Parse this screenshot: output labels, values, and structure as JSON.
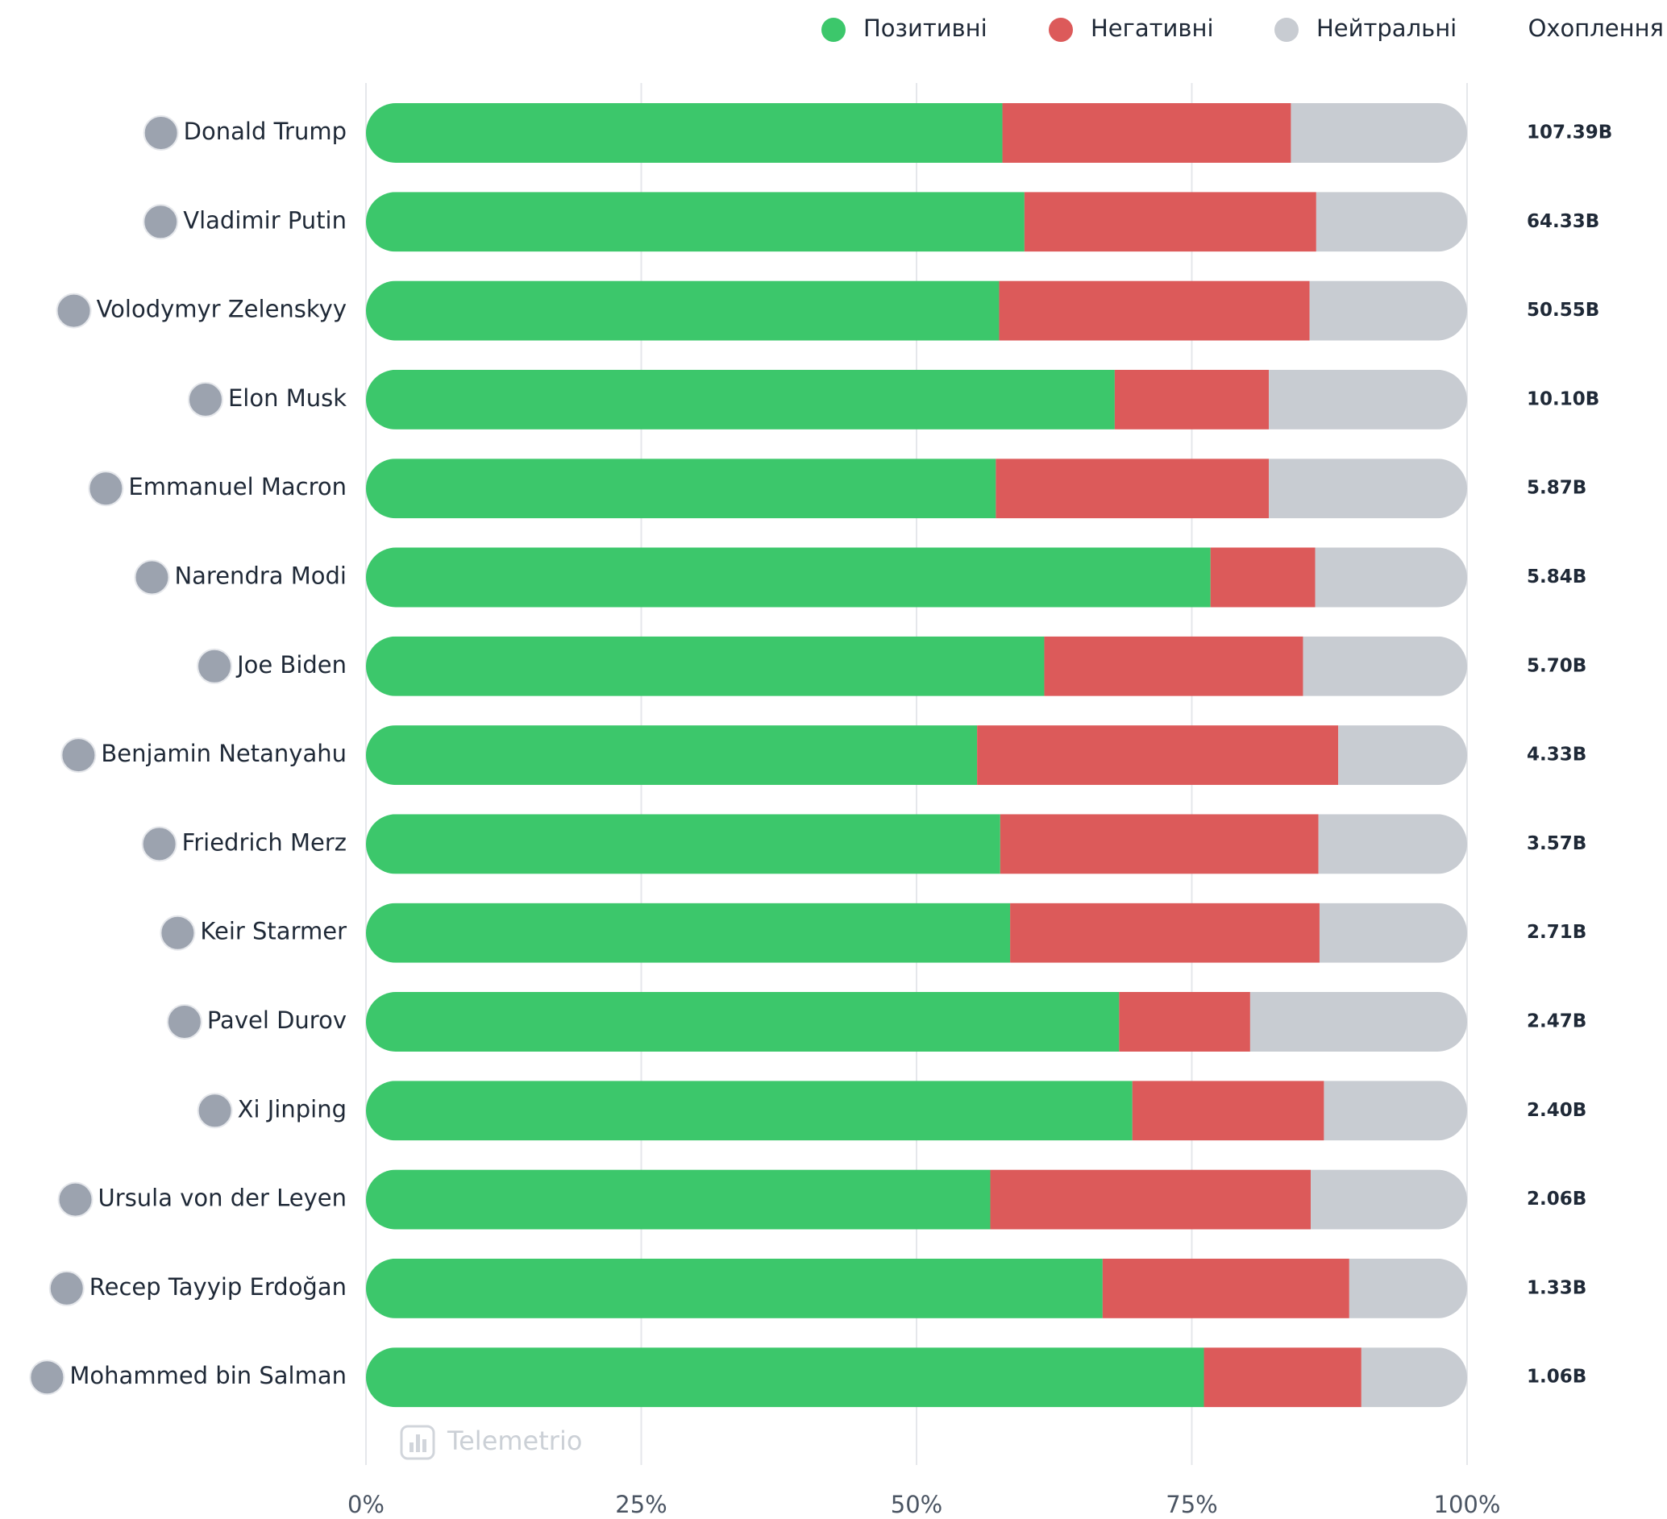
{
  "chart_data": {
    "type": "stacked-bar-horizontal",
    "categories": [
      "Donald Trump",
      "Vladimir Putin",
      "Volodymyr Zelenskyy",
      "Elon Musk",
      "Emmanuel Macron",
      "Narendra Modi",
      "Joe Biden",
      "Benjamin Netanyahu",
      "Friedrich Merz",
      "Keir Starmer",
      "Pavel Durov",
      "Xi Jinping",
      "Ursula von der Leyen",
      "Recep Tayyip Erdoğan",
      "Mohammed bin Salman"
    ],
    "series": [
      {
        "name": "Позитивні",
        "color": "#3cc76b",
        "values": [
          57.8,
          59.8,
          57.5,
          68.0,
          57.2,
          76.7,
          61.6,
          55.5,
          57.6,
          58.5,
          68.4,
          69.6,
          56.7,
          66.9,
          76.1
        ]
      },
      {
        "name": "Негативні",
        "color": "#dc5a5a",
        "values": [
          26.2,
          26.5,
          28.2,
          14.0,
          24.8,
          9.5,
          23.5,
          32.8,
          28.9,
          28.1,
          11.9,
          17.4,
          29.1,
          22.4,
          14.3
        ]
      },
      {
        "name": "Нейтральні",
        "color": "#c8ccd2",
        "values": [
          16.0,
          13.7,
          14.3,
          18.0,
          18.0,
          13.8,
          14.9,
          11.7,
          13.5,
          13.4,
          19.7,
          13.0,
          14.2,
          10.7,
          9.6
        ]
      }
    ],
    "reach_header": "Охоплення",
    "reach": [
      "107.39B",
      "64.33B",
      "50.55B",
      "10.10B",
      "5.87B",
      "5.84B",
      "5.70B",
      "4.33B",
      "3.57B",
      "2.71B",
      "2.47B",
      "2.40B",
      "2.06B",
      "1.33B",
      "1.06B"
    ],
    "watermark": "Telemetrio",
    "xlim": [
      0,
      100
    ],
    "xticks": [
      {
        "value": 0,
        "label": "0%"
      },
      {
        "value": 25,
        "label": "25%"
      },
      {
        "value": 50,
        "label": "50%"
      },
      {
        "value": 75,
        "label": "75%"
      },
      {
        "value": 100,
        "label": "100%"
      }
    ],
    "grid": true
  }
}
